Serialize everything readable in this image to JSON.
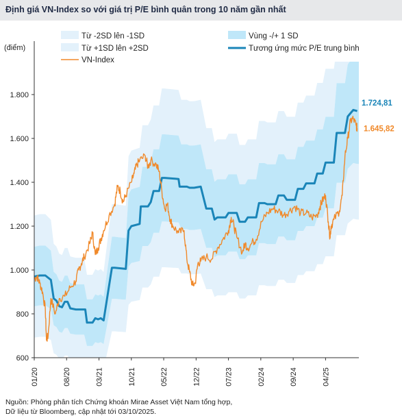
{
  "title": "Định giá VN-Index so với giá trị P/E bình quân trong 10 năm gần nhất",
  "source_line1": "Nguồn: Phòng phân tích Chứng khoán Mirae Asset Việt Nam tổng hợp,",
  "source_line2": "Dữ liệu từ Bloomberg, cập nhật tới 03/10/2025.",
  "colors": {
    "band_outer": "#e3f1fb",
    "band_inner": "#bfe7f9",
    "pe_line": "#1a85b8",
    "vnindex_line": "#f0892a",
    "axis": "#333333"
  },
  "chart_data": {
    "type": "line",
    "ylabel": "(điểm)",
    "ylim": [
      600,
      1950
    ],
    "yticks": [
      600,
      800,
      1000,
      1200,
      1400,
      1600,
      1800
    ],
    "ytick_labels": [
      "600",
      "800",
      "1.000",
      "1.200",
      "1.400",
      "1.600",
      "1.800"
    ],
    "xlim": [
      2020.0,
      2025.85
    ],
    "xticks": [
      {
        "x": 2020.0,
        "label": "01/20"
      },
      {
        "x": 2020.583,
        "label": "08/20"
      },
      {
        "x": 2021.167,
        "label": "03/21"
      },
      {
        "x": 2021.75,
        "label": "10/21"
      },
      {
        "x": 2022.333,
        "label": "05/22"
      },
      {
        "x": 2022.917,
        "label": "12/22"
      },
      {
        "x": 2023.5,
        "label": "07/23"
      },
      {
        "x": 2024.083,
        "label": "02/24"
      },
      {
        "x": 2024.667,
        "label": "09/24"
      },
      {
        "x": 2025.25,
        "label": "04/25"
      }
    ],
    "legend": [
      {
        "label": "Từ -2SD lên -1SD",
        "key": "band_outer",
        "kind": "fill"
      },
      {
        "label": "Vùng -/+ 1 SD",
        "key": "band_inner",
        "kind": "fill"
      },
      {
        "label": "Từ +1SD lên +2SD",
        "key": "band_outer",
        "kind": "fill"
      },
      {
        "label": "Tương ứng mức P/E trung bình",
        "key": "pe_line",
        "kind": "thick"
      },
      {
        "label": "VN-Index",
        "key": "vnindex_line",
        "kind": "thin"
      }
    ],
    "series": [
      {
        "name": "Tương ứng mức P/E trung bình",
        "x": [
          2020.0,
          2020.1,
          2020.2,
          2020.3,
          2020.35,
          2020.4,
          2020.45,
          2020.5,
          2020.55,
          2020.6,
          2020.65,
          2020.75,
          2020.85,
          2020.92,
          2020.95,
          2021.05,
          2021.1,
          2021.15,
          2021.2,
          2021.25,
          2021.4,
          2021.45,
          2021.65,
          2021.7,
          2021.75,
          2021.9,
          2021.92,
          2022.05,
          2022.1,
          2022.15,
          2022.25,
          2022.3,
          2022.35,
          2022.6,
          2022.62,
          2022.75,
          2022.8,
          2022.88,
          2023.0,
          2023.1,
          2023.2,
          2023.25,
          2023.3,
          2023.45,
          2023.5,
          2023.65,
          2023.7,
          2023.8,
          2023.85,
          2024.0,
          2024.05,
          2024.15,
          2024.2,
          2024.35,
          2024.4,
          2024.5,
          2024.55,
          2024.7,
          2024.75,
          2024.85,
          2024.9,
          2025.05,
          2025.1,
          2025.2,
          2025.25,
          2025.4,
          2025.45,
          2025.6,
          2025.65,
          2025.75,
          2025.82
        ],
        "values": [
          970,
          975,
          975,
          955,
          870,
          860,
          835,
          830,
          855,
          855,
          825,
          820,
          820,
          820,
          760,
          760,
          780,
          775,
          780,
          770,
          1010,
          1010,
          1005,
          1180,
          1200,
          1210,
          1290,
          1290,
          1310,
          1360,
          1360,
          1420,
          1420,
          1415,
          1380,
          1380,
          1375,
          1375,
          1380,
          1280,
          1280,
          1230,
          1240,
          1240,
          1260,
          1260,
          1220,
          1220,
          1240,
          1240,
          1305,
          1305,
          1300,
          1300,
          1340,
          1340,
          1320,
          1320,
          1370,
          1370,
          1395,
          1395,
          1440,
          1440,
          1490,
          1490,
          1625,
          1625,
          1700,
          1730,
          1724.81
        ],
        "end_label": "1.724,81"
      },
      {
        "name": "VN-Index",
        "x": [
          2020.0,
          2020.05,
          2020.1,
          2020.15,
          2020.2,
          2020.22,
          2020.25,
          2020.3,
          2020.38,
          2020.45,
          2020.55,
          2020.65,
          2020.75,
          2020.8,
          2020.85,
          2020.9,
          2021.0,
          2021.05,
          2021.1,
          2021.15,
          2021.2,
          2021.25,
          2021.35,
          2021.45,
          2021.5,
          2021.55,
          2021.6,
          2021.65,
          2021.75,
          2021.8,
          2021.85,
          2021.9,
          2022.0,
          2022.05,
          2022.1,
          2022.2,
          2022.25,
          2022.3,
          2022.35,
          2022.4,
          2022.45,
          2022.5,
          2022.6,
          2022.7,
          2022.75,
          2022.8,
          2022.85,
          2022.9,
          2022.95,
          2023.0,
          2023.1,
          2023.2,
          2023.3,
          2023.4,
          2023.5,
          2023.55,
          2023.6,
          2023.65,
          2023.75,
          2023.8,
          2023.85,
          2023.95,
          2024.0,
          2024.1,
          2024.2,
          2024.3,
          2024.4,
          2024.5,
          2024.6,
          2024.7,
          2024.8,
          2024.9,
          2025.0,
          2025.1,
          2025.15,
          2025.2,
          2025.25,
          2025.3,
          2025.33,
          2025.35,
          2025.4,
          2025.5,
          2025.55,
          2025.6,
          2025.65,
          2025.7,
          2025.75,
          2025.8,
          2025.82
        ],
        "values": [
          960,
          970,
          940,
          900,
          820,
          680,
          700,
          870,
          800,
          870,
          880,
          920,
          950,
          1000,
          1030,
          1060,
          1120,
          1170,
          1070,
          1100,
          1140,
          1180,
          1250,
          1300,
          1380,
          1360,
          1310,
          1340,
          1400,
          1440,
          1480,
          1500,
          1520,
          1470,
          1500,
          1480,
          1450,
          1360,
          1280,
          1300,
          1230,
          1200,
          1170,
          1180,
          1050,
          990,
          930,
          940,
          1030,
          1040,
          1060,
          1050,
          1100,
          1140,
          1180,
          1240,
          1200,
          1150,
          1080,
          1120,
          1100,
          1130,
          1140,
          1220,
          1260,
          1280,
          1270,
          1250,
          1270,
          1290,
          1260,
          1260,
          1240,
          1250,
          1290,
          1320,
          1340,
          1220,
          1150,
          1200,
          1230,
          1270,
          1340,
          1520,
          1600,
          1680,
          1690,
          1660,
          1645.82
        ],
        "end_label": "1.645,82"
      }
    ]
  }
}
